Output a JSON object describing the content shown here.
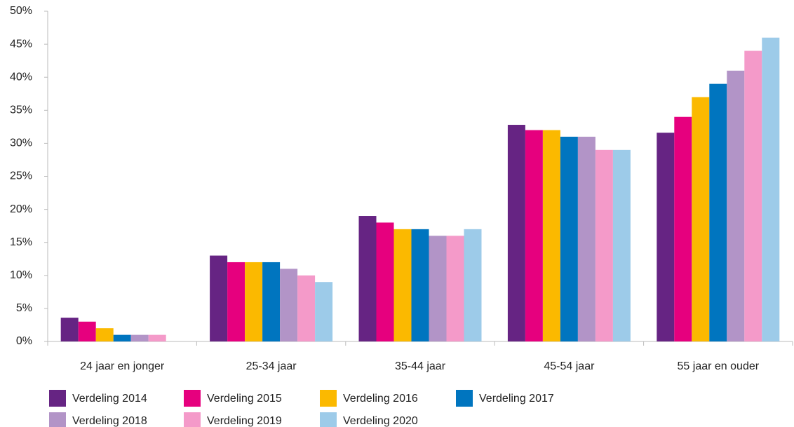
{
  "chart_data": {
    "type": "grouped_bar",
    "categories": [
      "24 jaar en jonger",
      "25-34 jaar",
      "35-44 jaar",
      "45-54 jaar",
      "55 jaar en ouder"
    ],
    "series": [
      {
        "name": "Verdeling 2014",
        "color": "#662483",
        "values": [
          3.6,
          13,
          19,
          32.8,
          31.6
        ]
      },
      {
        "name": "Verdeling 2015",
        "color": "#e6007e",
        "values": [
          3,
          12,
          18,
          32,
          34
        ]
      },
      {
        "name": "Verdeling 2016",
        "color": "#fbb900",
        "values": [
          2,
          12,
          17,
          32,
          37
        ]
      },
      {
        "name": "Verdeling 2017",
        "color": "#0075bf",
        "values": [
          1,
          12,
          17,
          31,
          39
        ]
      },
      {
        "name": "Verdeling 2018",
        "color": "#b294c7",
        "values": [
          1,
          11,
          16,
          31,
          41
        ]
      },
      {
        "name": "Verdeling 2019",
        "color": "#f49ac9",
        "values": [
          1,
          10,
          16,
          29,
          44
        ]
      },
      {
        "name": "Verdeling 2020",
        "color": "#9dcbe9",
        "values": [
          0,
          9,
          17,
          29,
          46
        ]
      }
    ],
    "ylim": [
      0,
      50
    ],
    "yticks": [
      {
        "value": 0,
        "label": "0%"
      },
      {
        "value": 5,
        "label": "5%"
      },
      {
        "value": 10,
        "label": "10%"
      },
      {
        "value": 15,
        "label": "15%"
      },
      {
        "value": 20,
        "label": "20%"
      },
      {
        "value": 25,
        "label": "25%"
      },
      {
        "value": 30,
        "label": "30%"
      },
      {
        "value": 35,
        "label": "35%"
      },
      {
        "value": 40,
        "label": "40%"
      },
      {
        "value": 45,
        "label": "45%"
      },
      {
        "value": 50,
        "label": "50%"
      }
    ],
    "grid": false,
    "legend": "bottom"
  }
}
